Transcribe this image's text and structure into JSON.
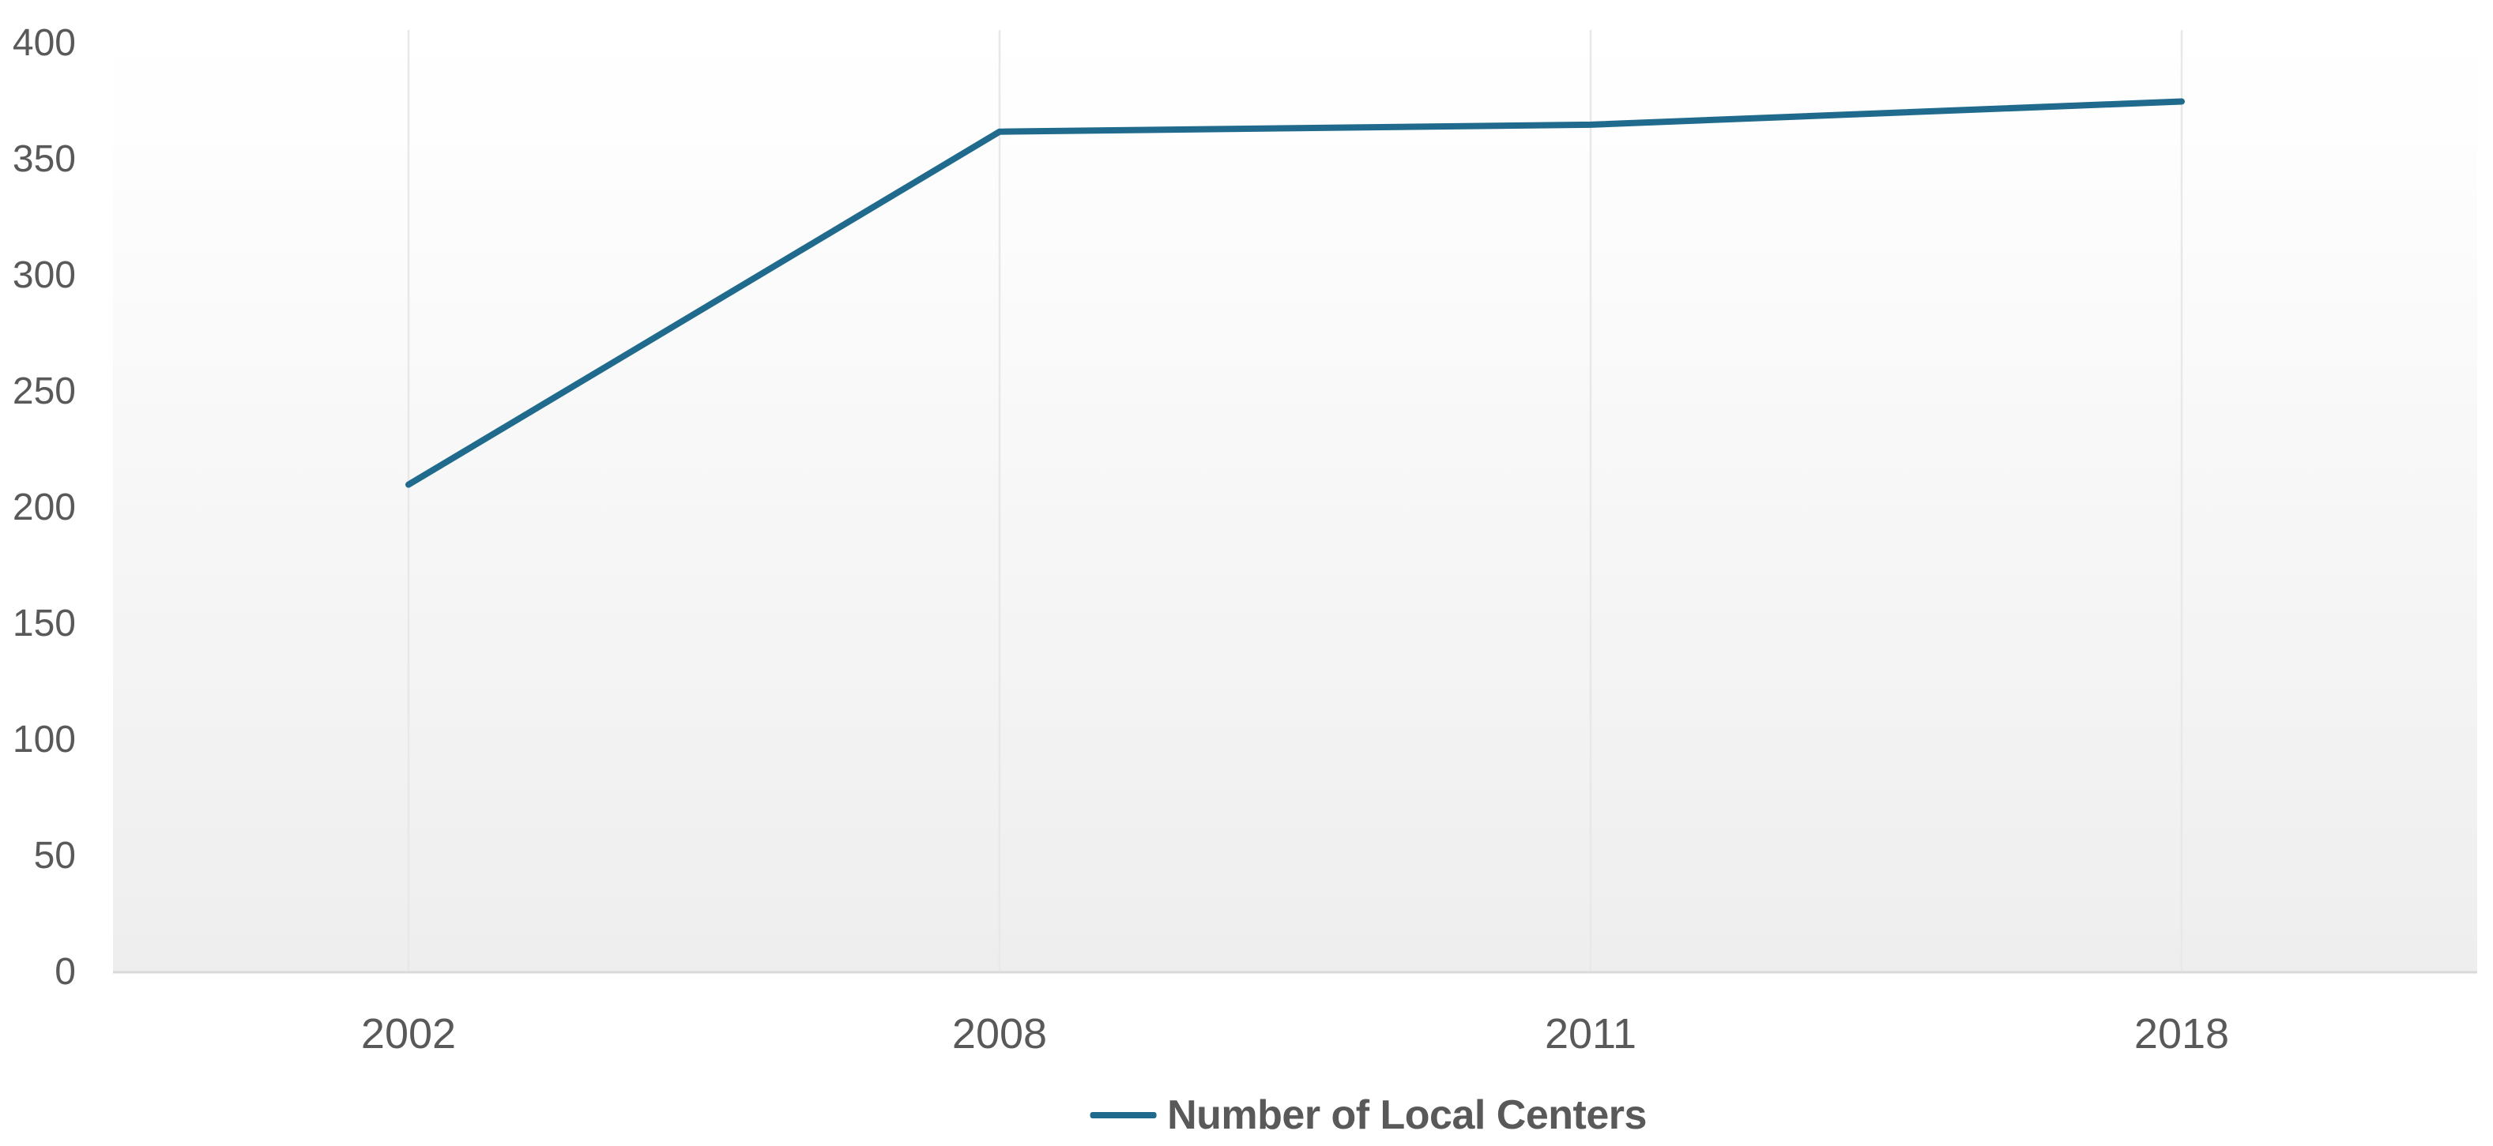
{
  "chart_data": {
    "type": "line",
    "categories": [
      "2002",
      "2008",
      "2011",
      "2018"
    ],
    "series": [
      {
        "name": "Number of Local Centers",
        "values": [
          210,
          362,
          365,
          375
        ]
      }
    ],
    "yticks": [
      0,
      50,
      100,
      150,
      200,
      250,
      300,
      350,
      400
    ],
    "ylim": [
      0,
      400
    ],
    "title": "",
    "xlabel": "",
    "ylabel": "",
    "grid": "vertical-category-gridlines-only",
    "legend_position": "bottom-center",
    "colors": {
      "line": "#1f6a8d",
      "tick_label": "#595959",
      "legend_text": "#595959",
      "gridline": "#e8e8e8",
      "axis_line": "#d9d9d9",
      "plot_bg_bottom": "#eeeeee",
      "plot_bg_top": "#ffffff"
    }
  }
}
